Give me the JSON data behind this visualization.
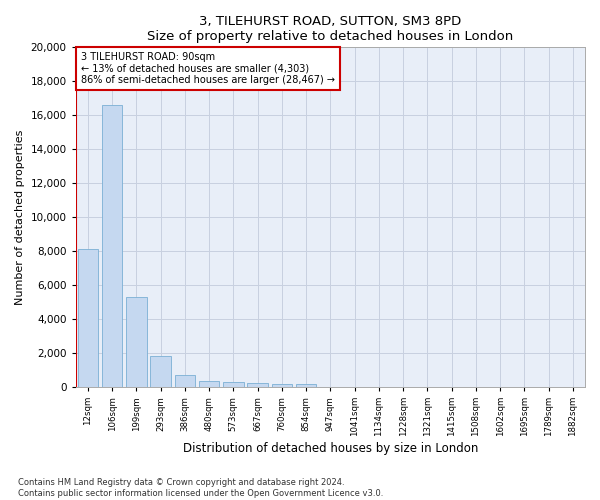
{
  "title": "3, TILEHURST ROAD, SUTTON, SM3 8PD",
  "subtitle": "Size of property relative to detached houses in London",
  "xlabel": "Distribution of detached houses by size in London",
  "ylabel": "Number of detached properties",
  "bar_color": "#c5d8f0",
  "bar_edge_color": "#7bafd4",
  "marker_line_color": "#cc0000",
  "annotation_box_color": "#cc0000",
  "background_color": "#e8eef8",
  "grid_color": "#c8d0e0",
  "categories": [
    "12sqm",
    "106sqm",
    "199sqm",
    "293sqm",
    "386sqm",
    "480sqm",
    "573sqm",
    "667sqm",
    "760sqm",
    "854sqm",
    "947sqm",
    "1041sqm",
    "1134sqm",
    "1228sqm",
    "1321sqm",
    "1415sqm",
    "1508sqm",
    "1602sqm",
    "1695sqm",
    "1789sqm",
    "1882sqm"
  ],
  "values": [
    8100,
    16600,
    5300,
    1800,
    700,
    350,
    280,
    220,
    180,
    200,
    0,
    0,
    0,
    0,
    0,
    0,
    0,
    0,
    0,
    0,
    0
  ],
  "ylim": [
    0,
    20000
  ],
  "yticks": [
    0,
    2000,
    4000,
    6000,
    8000,
    10000,
    12000,
    14000,
    16000,
    18000,
    20000
  ],
  "annotation_text": "3 TILEHURST ROAD: 90sqm\n← 13% of detached houses are smaller (4,303)\n86% of semi-detached houses are larger (28,467) →",
  "footer_line1": "Contains HM Land Registry data © Crown copyright and database right 2024.",
  "footer_line2": "Contains public sector information licensed under the Open Government Licence v3.0."
}
